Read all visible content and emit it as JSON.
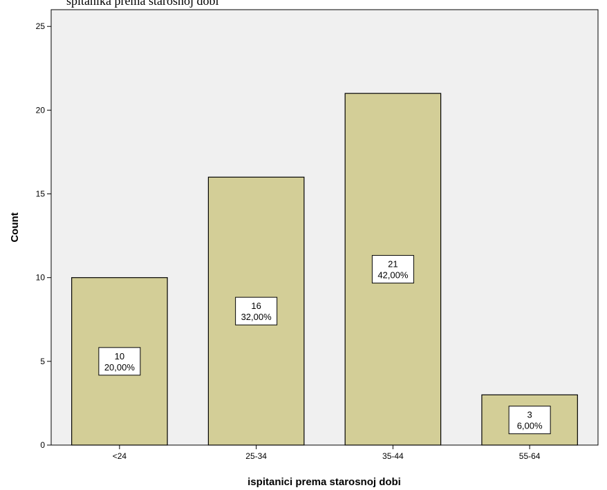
{
  "page_caption": "spitanika prema starosnoj dobi",
  "chart_data": {
    "type": "bar",
    "title": "",
    "xlabel": "ispitanici prema starosnoj dobi",
    "ylabel": "Count",
    "categories": [
      "<24",
      "25-34",
      "35-44",
      "55-64"
    ],
    "values": [
      10,
      16,
      21,
      3
    ],
    "percent_labels": [
      "20,00%",
      "32,00%",
      "42,00%",
      "6,00%"
    ],
    "count_labels": [
      "10",
      "16",
      "21",
      "3"
    ],
    "ylim": [
      0,
      26
    ],
    "yticks": [
      0,
      5,
      10,
      15,
      20,
      25
    ],
    "grid": false,
    "colors": {
      "bar_fill": "#d3ce97",
      "bar_stroke": "#000000",
      "plot_background": "#f0f0f0"
    }
  }
}
